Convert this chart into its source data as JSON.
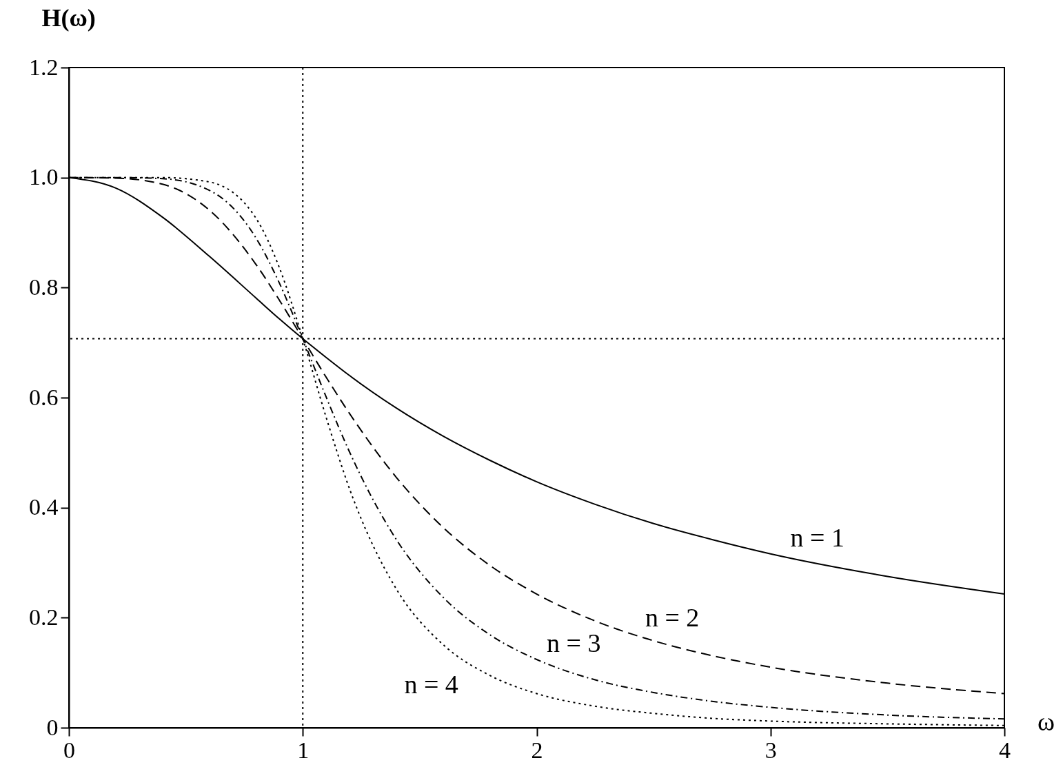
{
  "chart_data": {
    "type": "line",
    "xlabel": "ω",
    "ylabel": "H(ω)",
    "x": [
      0,
      0.2,
      0.4,
      0.6,
      0.8,
      0.9,
      1.0,
      1.1,
      1.2,
      1.4,
      1.6,
      1.8,
      2.0,
      2.25,
      2.5,
      2.75,
      3.0,
      3.5,
      4.0
    ],
    "series": [
      {
        "name": "n = 1",
        "color": "#000000",
        "line_style": "solid",
        "values": [
          1,
          0.981,
          0.928,
          0.857,
          0.781,
          0.743,
          0.707,
          0.673,
          0.64,
          0.581,
          0.53,
          0.486,
          0.447,
          0.406,
          0.371,
          0.342,
          0.316,
          0.275,
          0.243
        ]
      },
      {
        "name": "n = 2",
        "color": "#000000",
        "line_style": "dashed",
        "values": [
          1,
          0.999,
          0.988,
          0.941,
          0.842,
          0.777,
          0.707,
          0.637,
          0.571,
          0.455,
          0.364,
          0.295,
          0.243,
          0.194,
          0.158,
          0.131,
          0.11,
          0.081,
          0.062
        ]
      },
      {
        "name": "n = 3",
        "color": "#000000",
        "line_style": "dashdot",
        "values": [
          1,
          1.0,
          0.998,
          0.977,
          0.89,
          0.808,
          0.707,
          0.601,
          0.501,
          0.342,
          0.237,
          0.169,
          0.124,
          0.087,
          0.064,
          0.048,
          0.037,
          0.023,
          0.016
        ]
      },
      {
        "name": "n = 4",
        "color": "#000000",
        "line_style": "dotted",
        "values": [
          1,
          1.0,
          1.0,
          0.992,
          0.926,
          0.836,
          0.707,
          0.564,
          0.434,
          0.252,
          0.151,
          0.095,
          0.062,
          0.039,
          0.026,
          0.017,
          0.012,
          0.007,
          0.004
        ]
      }
    ],
    "xlim": [
      0,
      4
    ],
    "xticks": [
      0,
      1,
      2,
      3,
      4
    ],
    "ylim": [
      0,
      1.2
    ],
    "yticks": [
      0,
      0.2,
      0.4,
      0.6,
      0.8,
      {
        "value": 1,
        "label": "1.0"
      },
      1.2
    ],
    "ref_lines": [
      {
        "axis": "x",
        "value": 1,
        "color": "#000000",
        "line_style": "dotted"
      },
      {
        "axis": "y",
        "value": 0.707,
        "color": "#000000",
        "line_style": "dotted"
      }
    ]
  }
}
